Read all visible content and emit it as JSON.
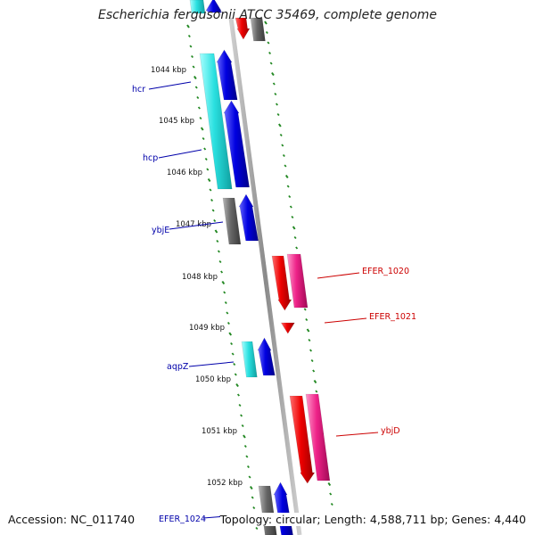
{
  "title": "Escherichia fergusonii ATCC 35469, complete genome",
  "footer": {
    "accession": "Accession: NC_011740",
    "summary": "Topology: circular; Length: 4,588,711 bp; Genes: 4,440"
  },
  "ruler": [
    {
      "label": "1044 kbp"
    },
    {
      "label": "1045 kbp"
    },
    {
      "label": "1046 kbp"
    },
    {
      "label": "1047 kbp"
    },
    {
      "label": "1048 kbp"
    },
    {
      "label": "1049 kbp"
    },
    {
      "label": "1050 kbp"
    },
    {
      "label": "1051 kbp"
    },
    {
      "label": "1052 kbp"
    }
  ],
  "gene_labels": [
    {
      "name": "hcr",
      "color": "#0000aa"
    },
    {
      "name": "hcp",
      "color": "#0000aa"
    },
    {
      "name": "ybjE",
      "color": "#0000aa"
    },
    {
      "name": "aqpZ",
      "color": "#0000aa"
    },
    {
      "name": "EFER_1024",
      "color": "#0000aa"
    },
    {
      "name": "EFER_1020",
      "color": "#cc0000"
    },
    {
      "name": "EFER_1021",
      "color": "#cc0000"
    },
    {
      "name": "ybjD",
      "color": "#cc0000"
    }
  ],
  "colors": {
    "backbone": "#999999",
    "tick": "#228822",
    "forward_cds": "#0000ee",
    "forward_rna": "#22cccc",
    "reverse_cds": "#ee0000",
    "reverse_rna": "#ee2288",
    "other": "#666666"
  }
}
